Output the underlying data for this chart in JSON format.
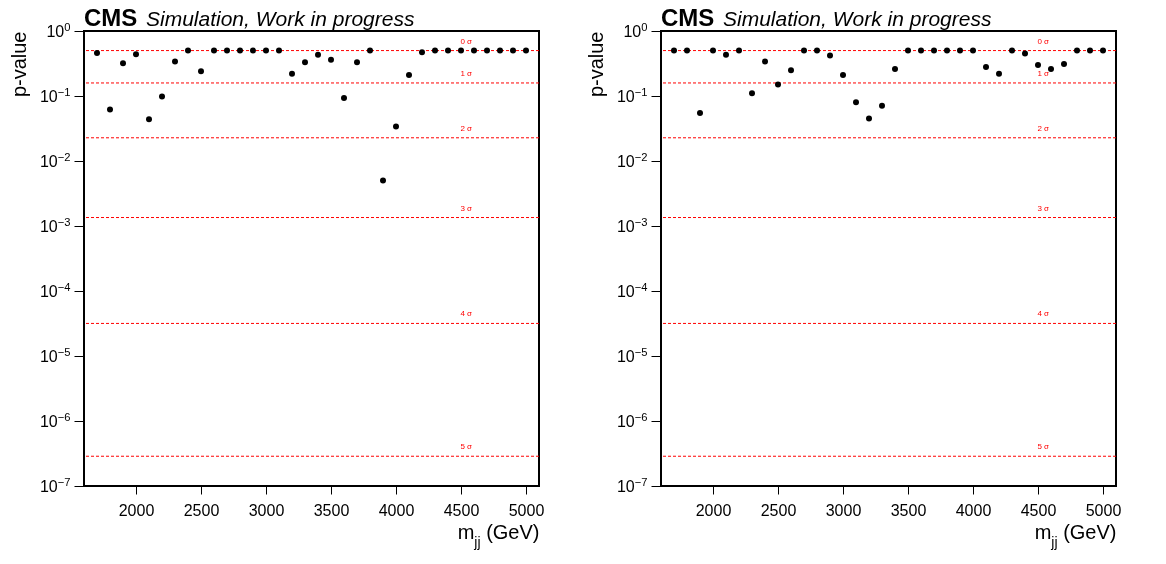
{
  "chart_data": [
    {
      "type": "scatter",
      "title": "CMS",
      "subtitle": "Simulation, Work in progress",
      "xlabel": "m$_{jj}$ (GeV)",
      "ylabel": "p-value",
      "color": "#000000",
      "marker": "circle",
      "log": "y",
      "grid": false,
      "x": [
        1700,
        1800,
        1900,
        2000,
        2100,
        2200,
        2300,
        2400,
        2500,
        2600,
        2700,
        2800,
        2900,
        3000,
        3100,
        3200,
        3300,
        3400,
        3500,
        3600,
        3700,
        3800,
        3900,
        4000,
        4100,
        4200,
        4300,
        4400,
        4500,
        4600,
        4700,
        4800,
        4900,
        5000
      ],
      "values": [
        0.46,
        0.062,
        0.32,
        0.44,
        0.044,
        0.098,
        0.34,
        0.5,
        0.24,
        0.5,
        0.5,
        0.5,
        0.5,
        0.5,
        0.5,
        0.22,
        0.33,
        0.43,
        0.36,
        0.093,
        0.33,
        0.5,
        0.005,
        0.034,
        0.21,
        0.47,
        0.5,
        0.5,
        0.5,
        0.5,
        0.5,
        0.5,
        0.5,
        0.5
      ],
      "xlim": [
        1600,
        5100
      ],
      "xticks": [
        2000,
        2500,
        3000,
        3500,
        4000,
        4500,
        5000
      ],
      "ylim": [
        1e-07,
        1
      ],
      "yticks": [
        {
          "value": 1,
          "label": "10$^{0}$"
        },
        {
          "value": 0.1,
          "label": "10$^{−1}$"
        },
        {
          "value": 0.01,
          "label": "10$^{−2}$"
        },
        {
          "value": 0.001,
          "label": "10$^{−3}$"
        },
        {
          "value": 0.0001,
          "label": "10$^{−4}$"
        },
        {
          "value": 1e-05,
          "label": "10$^{−5}$"
        },
        {
          "value": 1e-06,
          "label": "10$^{−6}$"
        },
        {
          "value": 1e-07,
          "label": "10$^{−7}$"
        }
      ],
      "ref_lines": [
        {
          "axis": "y",
          "value": 0.5,
          "label": "0 σ",
          "color": "#ff0000",
          "line_style": "dashed"
        },
        {
          "axis": "y",
          "value": 0.1587,
          "label": "1 σ",
          "color": "#ff0000",
          "line_style": "dashed"
        },
        {
          "axis": "y",
          "value": 0.02275,
          "label": "2 σ",
          "color": "#ff0000",
          "line_style": "dashed"
        },
        {
          "axis": "y",
          "value": 0.00135,
          "label": "3 σ",
          "color": "#ff0000",
          "line_style": "dashed"
        },
        {
          "axis": "y",
          "value": 3.17e-05,
          "label": "4 σ",
          "color": "#ff0000",
          "line_style": "dashed"
        },
        {
          "axis": "y",
          "value": 2.87e-07,
          "label": "5 σ",
          "color": "#ff0000",
          "line_style": "dashed"
        }
      ]
    },
    {
      "type": "scatter",
      "title": "CMS",
      "subtitle": "Simulation, Work in progress",
      "xlabel": "m$_{jj}$ (GeV)",
      "ylabel": "p-value",
      "color": "#000000",
      "marker": "circle",
      "log": "y",
      "grid": false,
      "x": [
        1700,
        1800,
        1900,
        2000,
        2100,
        2200,
        2300,
        2400,
        2500,
        2600,
        2700,
        2800,
        2900,
        3000,
        3100,
        3200,
        3300,
        3400,
        3500,
        3600,
        3700,
        3800,
        3900,
        4000,
        4100,
        4200,
        4300,
        4400,
        4500,
        4600,
        4700,
        4800,
        4900,
        5000
      ],
      "values": [
        0.5,
        0.5,
        0.055,
        0.5,
        0.43,
        0.5,
        0.11,
        0.34,
        0.15,
        0.25,
        0.5,
        0.5,
        0.42,
        0.21,
        0.08,
        0.045,
        0.071,
        0.26,
        0.5,
        0.5,
        0.5,
        0.5,
        0.5,
        0.5,
        0.28,
        0.22,
        0.5,
        0.45,
        0.3,
        0.26,
        0.31,
        0.5,
        0.5,
        0.5
      ],
      "xlim": [
        1600,
        5100
      ],
      "xticks": [
        2000,
        2500,
        3000,
        3500,
        4000,
        4500,
        5000
      ],
      "ylim": [
        1e-07,
        1
      ],
      "yticks": [
        {
          "value": 1,
          "label": "10$^{0}$"
        },
        {
          "value": 0.1,
          "label": "10$^{−1}$"
        },
        {
          "value": 0.01,
          "label": "10$^{−2}$"
        },
        {
          "value": 0.001,
          "label": "10$^{−3}$"
        },
        {
          "value": 0.0001,
          "label": "10$^{−4}$"
        },
        {
          "value": 1e-05,
          "label": "10$^{−5}$"
        },
        {
          "value": 1e-06,
          "label": "10$^{−6}$"
        },
        {
          "value": 1e-07,
          "label": "10$^{−7}$"
        }
      ],
      "ref_lines": [
        {
          "axis": "y",
          "value": 0.5,
          "label": "0 σ",
          "color": "#ff0000",
          "line_style": "dashed"
        },
        {
          "axis": "y",
          "value": 0.1587,
          "label": "1 σ",
          "color": "#ff0000",
          "line_style": "dashed"
        },
        {
          "axis": "y",
          "value": 0.02275,
          "label": "2 σ",
          "color": "#ff0000",
          "line_style": "dashed"
        },
        {
          "axis": "y",
          "value": 0.00135,
          "label": "3 σ",
          "color": "#ff0000",
          "line_style": "dashed"
        },
        {
          "axis": "y",
          "value": 3.17e-05,
          "label": "4 σ",
          "color": "#ff0000",
          "line_style": "dashed"
        },
        {
          "axis": "y",
          "value": 2.87e-07,
          "label": "5 σ",
          "color": "#ff0000",
          "line_style": "dashed"
        }
      ]
    }
  ]
}
